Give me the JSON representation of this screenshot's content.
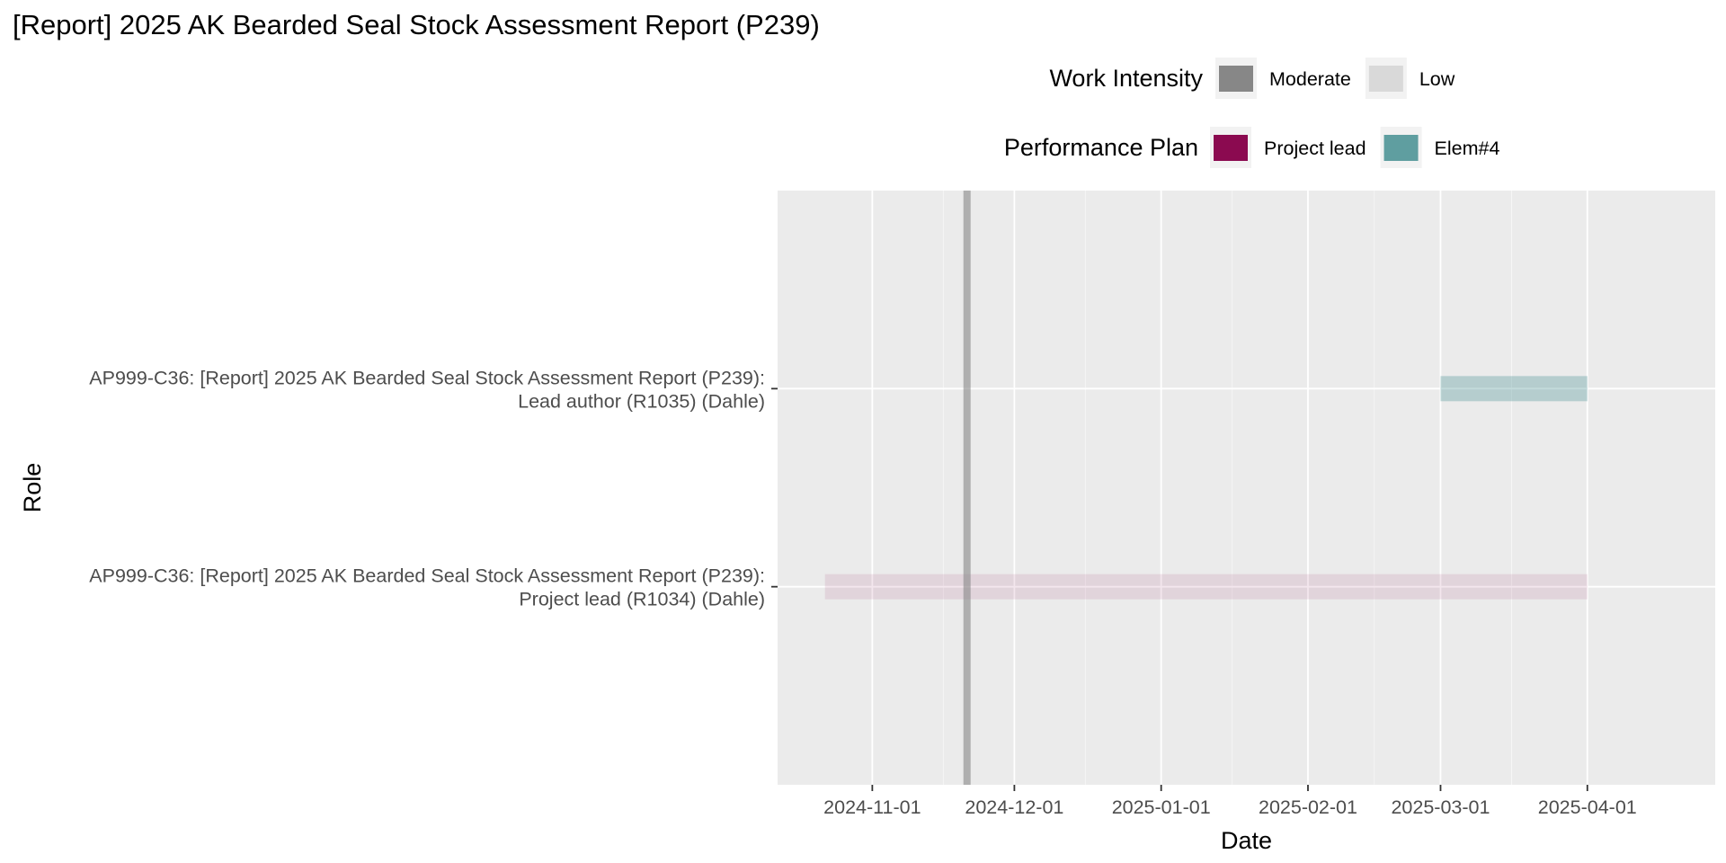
{
  "chart_data": {
    "type": "gantt",
    "title": "[Report] 2025 AK Bearded Seal Stock Assessment Report (P239)",
    "xlabel": "Date",
    "ylabel": "Role",
    "grid": true,
    "legend_placement": "top",
    "xlim": [
      "2024-10-12",
      "2025-04-28"
    ],
    "x_ticks": [
      "2024-11-01",
      "2024-12-01",
      "2025-01-01",
      "2025-02-01",
      "2025-03-01",
      "2025-04-01"
    ],
    "y_categories": [
      {
        "line1": "AP999-C36: [Report] 2025 AK Bearded Seal Stock Assessment Report (P239):",
        "line2": "Lead author (R1035) (Dahle)"
      },
      {
        "line1": "AP999-C36: [Report] 2025 AK Bearded Seal Stock Assessment Report (P239):",
        "line2": "Project lead (R1034) (Dahle)"
      }
    ],
    "segments": [
      {
        "row": 0,
        "start": "2025-03-01",
        "end": "2025-04-01",
        "plan": "Elem#4",
        "intensity": "Low"
      },
      {
        "row": 1,
        "start": "2024-10-22",
        "end": "2025-04-01",
        "plan": "Project lead",
        "intensity": "Low"
      }
    ],
    "vline": {
      "date": "2024-11-21",
      "intensity": "Moderate"
    },
    "legends": [
      {
        "title": "Work Intensity",
        "items": [
          {
            "label": "Moderate",
            "color": "#878787"
          },
          {
            "label": "Low",
            "color": "#d9d9d9"
          }
        ]
      },
      {
        "title": "Performance Plan",
        "items": [
          {
            "label": "Project lead",
            "color": "#8b0a50"
          },
          {
            "label": "Elem#4",
            "color": "#5f9ea0"
          }
        ]
      }
    ],
    "colors": {
      "panel": "#ebebeb",
      "grid": "#ffffff",
      "key_background": "#f2f2f2",
      "Project lead": "#8b0a50",
      "Elem#4": "#5f9ea0",
      "Moderate": "#878787",
      "Low": "#d9d9d9"
    }
  }
}
